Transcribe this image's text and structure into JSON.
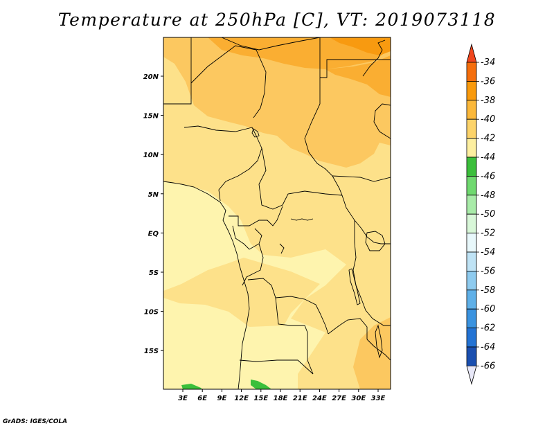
{
  "title": "Temperature at 250hPa [C], VT: 2019073118",
  "credit": "GrADS: IGES/COLA",
  "map": {
    "lat_labels": [
      "20N",
      "15N",
      "10N",
      "5N",
      "EQ",
      "5S",
      "10S",
      "15S"
    ],
    "lon_labels": [
      "3E",
      "6E",
      "9E",
      "12E",
      "15E",
      "18E",
      "21E",
      "24E",
      "27E",
      "30E",
      "33E"
    ]
  },
  "colorbar": {
    "levels": [
      "-34",
      "-36",
      "-38",
      "-40",
      "-42",
      "-44",
      "-46",
      "-48",
      "-50",
      "-52",
      "-54",
      "-56",
      "-58",
      "-60",
      "-62",
      "-64",
      "-66"
    ],
    "colors": {
      "top_triangle": "#f0461e",
      "boxes": [
        "#f56e0c",
        "#f99a0c",
        "#fbb83a",
        "#fcd36a",
        "#fdefa0",
        "#3bbf3b",
        "#6fd96f",
        "#a8eba8",
        "#d8f7d8",
        "#e8f8fb",
        "#bfe3f5",
        "#8ecbef",
        "#5fb0e8",
        "#3a93e0",
        "#2373d4",
        "#1a4fb0"
      ],
      "bottom_box": "#0c1070",
      "bottom_triangle": "#e8e8f8"
    }
  },
  "field_colors": {
    "t_minus_35": "#f89a10",
    "t_minus_37": "#faae32",
    "t_minus_39": "#fcc860",
    "t_minus_41": "#fde18a",
    "t_minus_43": "#fef4ae",
    "t_minus_45": "#3bbf3b"
  }
}
